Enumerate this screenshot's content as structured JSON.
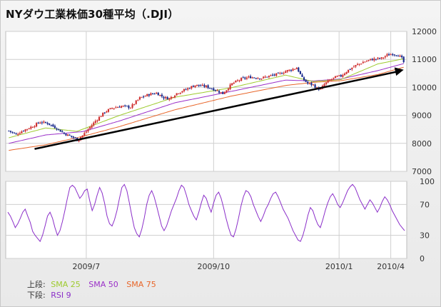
{
  "title": "NYダウ工業株価30種平均（.DJI）",
  "colors": {
    "up": "#d03030",
    "down": "#1a2b8c",
    "sma25": "#9ecb2e",
    "sma50": "#9a2fc8",
    "sma75": "#e8662a",
    "rsi": "#8b2fc9",
    "trend": "#000000",
    "grid": "#cfcfcf"
  },
  "legend": {
    "upper_label": "上段:",
    "lower_label": "下段:",
    "sma25": "SMA 25",
    "sma50": "SMA 50",
    "sma75": "SMA 75",
    "rsi9": "RSI 9"
  },
  "chart_data": [
    {
      "type": "candlestick",
      "panel": "price",
      "title": "",
      "x_ticks": [
        "2009/7",
        "2009/10",
        "2010/1",
        "2010/4"
      ],
      "y_ticks": [
        "12000",
        "11000",
        "10000",
        "9000",
        "8000",
        "7000"
      ],
      "ylim": [
        7000,
        12000
      ],
      "grid": true,
      "price_path": [
        [
          0,
          8450
        ],
        [
          4,
          8320
        ],
        [
          8,
          8470
        ],
        [
          12,
          8580
        ],
        [
          17,
          8760
        ],
        [
          21,
          8720
        ],
        [
          26,
          8540
        ],
        [
          30,
          8350
        ],
        [
          35,
          8210
        ],
        [
          37,
          8120
        ],
        [
          40,
          8280
        ],
        [
          43,
          8500
        ],
        [
          47,
          8800
        ],
        [
          52,
          9120
        ],
        [
          56,
          9260
        ],
        [
          61,
          9330
        ],
        [
          66,
          9290
        ],
        [
          71,
          9620
        ],
        [
          76,
          9750
        ],
        [
          80,
          9800
        ],
        [
          84,
          9640
        ],
        [
          87,
          9600
        ],
        [
          91,
          9790
        ],
        [
          96,
          9930
        ],
        [
          101,
          10080
        ],
        [
          107,
          10030
        ],
        [
          112,
          9910
        ],
        [
          116,
          9780
        ],
        [
          121,
          10130
        ],
        [
          126,
          10300
        ],
        [
          131,
          10370
        ],
        [
          137,
          10330
        ],
        [
          142,
          10420
        ],
        [
          147,
          10490
        ],
        [
          150,
          10580
        ],
        [
          154,
          10650
        ],
        [
          156,
          10700
        ],
        [
          157,
          10590
        ],
        [
          159,
          10330
        ],
        [
          162,
          10140
        ],
        [
          165,
          10090
        ],
        [
          167,
          9970
        ],
        [
          169,
          9930
        ],
        [
          171,
          10110
        ],
        [
          174,
          10260
        ],
        [
          177,
          10360
        ],
        [
          180,
          10410
        ],
        [
          184,
          10620
        ],
        [
          188,
          10780
        ],
        [
          192,
          10900
        ],
        [
          196,
          10990
        ],
        [
          199,
          11020
        ],
        [
          202,
          11040
        ],
        [
          205,
          11150
        ],
        [
          208,
          11200
        ],
        [
          211,
          11160
        ],
        [
          213,
          11040
        ],
        [
          214,
          10900
        ]
      ],
      "sma25_path": [
        [
          0,
          8200
        ],
        [
          20,
          8550
        ],
        [
          37,
          8430
        ],
        [
          60,
          9000
        ],
        [
          90,
          9650
        ],
        [
          120,
          9980
        ],
        [
          150,
          10440
        ],
        [
          165,
          10210
        ],
        [
          180,
          10280
        ],
        [
          200,
          10840
        ],
        [
          214,
          11020
        ]
      ],
      "sma50_path": [
        [
          0,
          8000
        ],
        [
          20,
          8300
        ],
        [
          40,
          8420
        ],
        [
          60,
          8800
        ],
        [
          90,
          9450
        ],
        [
          120,
          9850
        ],
        [
          150,
          10260
        ],
        [
          165,
          10230
        ],
        [
          180,
          10300
        ],
        [
          200,
          10600
        ],
        [
          214,
          10850
        ]
      ],
      "sma75_path": [
        [
          0,
          7750
        ],
        [
          20,
          7950
        ],
        [
          40,
          8250
        ],
        [
          60,
          8600
        ],
        [
          90,
          9200
        ],
        [
          120,
          9680
        ],
        [
          150,
          10070
        ],
        [
          165,
          10180
        ],
        [
          180,
          10240
        ],
        [
          200,
          10460
        ],
        [
          214,
          10720
        ]
      ],
      "trend_line": [
        [
          14,
          7800
        ],
        [
          214,
          10630
        ]
      ]
    },
    {
      "type": "line",
      "panel": "rsi",
      "title": "",
      "series": [
        {
          "name": "RSI 9",
          "values": [
            60,
            55,
            48,
            40,
            45,
            52,
            60,
            64,
            55,
            47,
            35,
            30,
            26,
            22,
            30,
            42,
            55,
            60,
            52,
            40,
            30,
            36,
            48,
            62,
            78,
            92,
            95,
            92,
            85,
            78,
            82,
            88,
            90,
            75,
            62,
            70,
            82,
            92,
            85,
            72,
            55,
            45,
            42,
            50,
            62,
            78,
            92,
            96,
            88,
            72,
            55,
            40,
            32,
            28,
            38,
            52,
            70,
            82,
            88,
            80,
            68,
            55,
            42,
            36,
            42,
            52,
            62,
            70,
            78,
            88,
            95,
            92,
            82,
            70,
            62,
            55,
            50,
            60,
            72,
            82,
            78,
            68,
            60,
            72,
            82,
            86,
            78,
            66,
            52,
            40,
            30,
            28,
            38,
            52,
            68,
            80,
            88,
            86,
            80,
            70,
            62,
            54,
            48,
            55,
            64,
            70,
            78,
            84,
            86,
            80,
            72,
            64,
            58,
            52,
            44,
            36,
            30,
            24,
            22,
            30,
            42,
            56,
            66,
            62,
            52,
            44,
            40,
            50,
            62,
            72,
            80,
            84,
            78,
            70,
            66,
            72,
            80,
            88,
            93,
            96,
            92,
            84,
            76,
            70,
            64,
            70,
            76,
            72,
            66,
            60,
            66,
            74,
            80,
            76,
            70,
            62,
            56,
            50,
            44,
            40,
            36
          ]
        }
      ],
      "y_ticks": [
        "100",
        "70",
        "30",
        "0"
      ],
      "ylim": [
        0,
        100
      ],
      "grid": true
    }
  ]
}
